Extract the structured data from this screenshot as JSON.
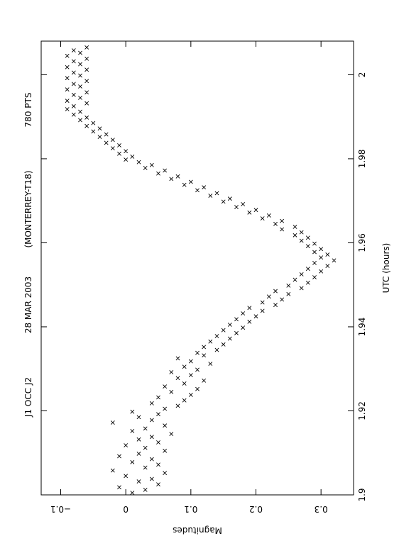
{
  "chart_data": {
    "type": "scatter",
    "title_parts": [
      "J1 OCC J2",
      "28 MAR 2003",
      "(MONTERREY-T18)",
      "780 PTS"
    ],
    "xlabel": "UTC (hours)",
    "ylabel": "Magnitudes",
    "xlim": [
      1.9,
      2.008
    ],
    "ylim": [
      -0.13,
      0.35
    ],
    "x_ticks": [
      1.9,
      1.92,
      1.94,
      1.96,
      1.98,
      2.0
    ],
    "x_tick_labels": [
      "1.9",
      "1.92",
      "1.94",
      "1.96",
      "1.98",
      "2"
    ],
    "y_ticks": [
      -0.1,
      0,
      0.1,
      0.2,
      0.3
    ],
    "y_tick_labels": [
      "−0.1",
      "0",
      "0.1",
      "0.2",
      "0.3"
    ],
    "marker": "x",
    "grid": false,
    "series": [
      {
        "points": [
          [
            1.9005,
            0.01
          ],
          [
            1.9012,
            0.03
          ],
          [
            1.9018,
            -0.01
          ],
          [
            1.9025,
            0.05
          ],
          [
            1.9032,
            0.02
          ],
          [
            1.9038,
            0.04
          ],
          [
            1.9045,
            0.0
          ],
          [
            1.9052,
            0.06
          ],
          [
            1.9058,
            -0.02
          ],
          [
            1.9065,
            0.03
          ],
          [
            1.9072,
            0.05
          ],
          [
            1.9078,
            0.01
          ],
          [
            1.9085,
            0.04
          ],
          [
            1.9092,
            -0.01
          ],
          [
            1.9098,
            0.02
          ],
          [
            1.9105,
            0.06
          ],
          [
            1.9112,
            0.03
          ],
          [
            1.9118,
            0.0
          ],
          [
            1.9125,
            0.05
          ],
          [
            1.9132,
            0.02
          ],
          [
            1.9138,
            0.04
          ],
          [
            1.9145,
            0.07
          ],
          [
            1.9152,
            0.01
          ],
          [
            1.9158,
            0.03
          ],
          [
            1.9165,
            0.06
          ],
          [
            1.9172,
            -0.02
          ],
          [
            1.9178,
            0.04
          ],
          [
            1.9185,
            0.02
          ],
          [
            1.9192,
            0.05
          ],
          [
            1.9198,
            0.01
          ],
          [
            1.9205,
            0.06
          ],
          [
            1.9212,
            0.08
          ],
          [
            1.9218,
            0.04
          ],
          [
            1.9225,
            0.09
          ],
          [
            1.9232,
            0.05
          ],
          [
            1.9238,
            0.1
          ],
          [
            1.9245,
            0.07
          ],
          [
            1.9252,
            0.11
          ],
          [
            1.9258,
            0.06
          ],
          [
            1.9265,
            0.09
          ],
          [
            1.9272,
            0.12
          ],
          [
            1.9278,
            0.08
          ],
          [
            1.9285,
            0.1
          ],
          [
            1.9292,
            0.07
          ],
          [
            1.9298,
            0.11
          ],
          [
            1.9305,
            0.09
          ],
          [
            1.9312,
            0.13
          ],
          [
            1.9318,
            0.1
          ],
          [
            1.9325,
            0.08
          ],
          [
            1.9332,
            0.12
          ],
          [
            1.9338,
            0.11
          ],
          [
            1.9345,
            0.14
          ],
          [
            1.9352,
            0.12
          ],
          [
            1.9358,
            0.15
          ],
          [
            1.9365,
            0.13
          ],
          [
            1.9372,
            0.16
          ],
          [
            1.9378,
            0.14
          ],
          [
            1.9385,
            0.17
          ],
          [
            1.9392,
            0.15
          ],
          [
            1.9398,
            0.18
          ],
          [
            1.9405,
            0.16
          ],
          [
            1.9412,
            0.19
          ],
          [
            1.9418,
            0.17
          ],
          [
            1.9425,
            0.2
          ],
          [
            1.9432,
            0.18
          ],
          [
            1.9438,
            0.21
          ],
          [
            1.9445,
            0.19
          ],
          [
            1.9452,
            0.23
          ],
          [
            1.9458,
            0.21
          ],
          [
            1.9465,
            0.24
          ],
          [
            1.9472,
            0.22
          ],
          [
            1.9478,
            0.25
          ],
          [
            1.9485,
            0.23
          ],
          [
            1.9492,
            0.27
          ],
          [
            1.9498,
            0.25
          ],
          [
            1.9505,
            0.28
          ],
          [
            1.9512,
            0.26
          ],
          [
            1.9518,
            0.29
          ],
          [
            1.9525,
            0.27
          ],
          [
            1.9532,
            0.3
          ],
          [
            1.9538,
            0.28
          ],
          [
            1.9545,
            0.31
          ],
          [
            1.9552,
            0.29
          ],
          [
            1.9558,
            0.32
          ],
          [
            1.9565,
            0.3
          ],
          [
            1.9572,
            0.31
          ],
          [
            1.9578,
            0.29
          ],
          [
            1.9585,
            0.3
          ],
          [
            1.9592,
            0.28
          ],
          [
            1.9598,
            0.29
          ],
          [
            1.9605,
            0.27
          ],
          [
            1.9612,
            0.28
          ],
          [
            1.9618,
            0.26
          ],
          [
            1.9625,
            0.27
          ],
          [
            1.9632,
            0.24
          ],
          [
            1.9638,
            0.26
          ],
          [
            1.9645,
            0.23
          ],
          [
            1.9652,
            0.24
          ],
          [
            1.9658,
            0.21
          ],
          [
            1.9665,
            0.22
          ],
          [
            1.9672,
            0.19
          ],
          [
            1.9678,
            0.2
          ],
          [
            1.9685,
            0.17
          ],
          [
            1.9692,
            0.18
          ],
          [
            1.9698,
            0.15
          ],
          [
            1.9705,
            0.16
          ],
          [
            1.9712,
            0.13
          ],
          [
            1.9718,
            0.14
          ],
          [
            1.9725,
            0.11
          ],
          [
            1.9732,
            0.12
          ],
          [
            1.9738,
            0.09
          ],
          [
            1.9745,
            0.1
          ],
          [
            1.9752,
            0.07
          ],
          [
            1.9758,
            0.08
          ],
          [
            1.9765,
            0.05
          ],
          [
            1.9772,
            0.06
          ],
          [
            1.9778,
            0.03
          ],
          [
            1.9785,
            0.04
          ],
          [
            1.9792,
            0.02
          ],
          [
            1.9798,
            0.0
          ],
          [
            1.9805,
            0.01
          ],
          [
            1.9812,
            -0.01
          ],
          [
            1.9818,
            0.0
          ],
          [
            1.9825,
            -0.02
          ],
          [
            1.9832,
            -0.01
          ],
          [
            1.9838,
            -0.03
          ],
          [
            1.9845,
            -0.02
          ],
          [
            1.9852,
            -0.04
          ],
          [
            1.9858,
            -0.03
          ],
          [
            1.9865,
            -0.05
          ],
          [
            1.9872,
            -0.04
          ],
          [
            1.9878,
            -0.06
          ],
          [
            1.9885,
            -0.05
          ],
          [
            1.9892,
            -0.07
          ],
          [
            1.9898,
            -0.06
          ],
          [
            1.9905,
            -0.08
          ],
          [
            1.9912,
            -0.07
          ],
          [
            1.9918,
            -0.09
          ],
          [
            1.9925,
            -0.08
          ],
          [
            1.9932,
            -0.06
          ],
          [
            1.9938,
            -0.09
          ],
          [
            1.9945,
            -0.07
          ],
          [
            1.9952,
            -0.08
          ],
          [
            1.9958,
            -0.06
          ],
          [
            1.9965,
            -0.09
          ],
          [
            1.9972,
            -0.07
          ],
          [
            1.9978,
            -0.08
          ],
          [
            1.9985,
            -0.06
          ],
          [
            1.9992,
            -0.09
          ],
          [
            1.9998,
            -0.07
          ],
          [
            2.0005,
            -0.08
          ],
          [
            2.0012,
            -0.06
          ],
          [
            2.0018,
            -0.09
          ],
          [
            2.0025,
            -0.07
          ],
          [
            2.0032,
            -0.08
          ],
          [
            2.0038,
            -0.06
          ],
          [
            2.0045,
            -0.09
          ],
          [
            2.0052,
            -0.07
          ],
          [
            2.0058,
            -0.08
          ],
          [
            2.0065,
            -0.06
          ]
        ]
      }
    ]
  }
}
